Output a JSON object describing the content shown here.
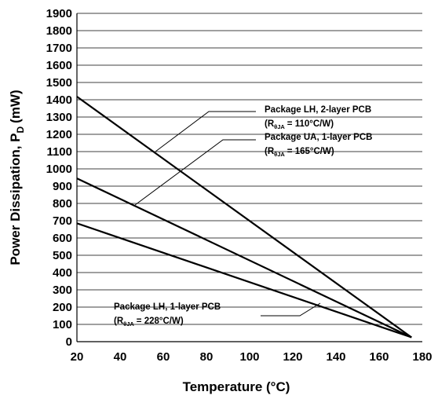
{
  "chart_data": {
    "type": "line",
    "xlabel": "Temperature (°C)",
    "ylabel": "Power Dissipation, P",
    "ylabel_subscript": "D",
    "ylabel_unit": "(mW)",
    "xlim": [
      20,
      180
    ],
    "ylim": [
      0,
      1900
    ],
    "xticks": [
      20,
      40,
      60,
      80,
      100,
      120,
      140,
      160,
      180
    ],
    "yticks": [
      0,
      100,
      200,
      300,
      400,
      500,
      600,
      700,
      800,
      900,
      1000,
      1100,
      1200,
      1300,
      1400,
      1500,
      1600,
      1700,
      1800,
      1900
    ],
    "grid": "horizontal",
    "series": [
      {
        "name": "Package LH, 2-layer PCB",
        "resistance_label": "= 110°C/W)",
        "x": [
          20,
          175
        ],
        "y": [
          1418,
          25
        ]
      },
      {
        "name": "Package UA, 1-layer PCB",
        "resistance_label": "= 165°C/W)",
        "x": [
          20,
          175
        ],
        "y": [
          945,
          25
        ]
      },
      {
        "name": "Package LH, 1-layer PCB",
        "resistance_label": "= 228°C/W)",
        "x": [
          20,
          175
        ],
        "y": [
          685,
          25
        ]
      }
    ],
    "annotation_prefix": "(R",
    "annotation_subscript": "θJA",
    "line_color": "#000000"
  }
}
